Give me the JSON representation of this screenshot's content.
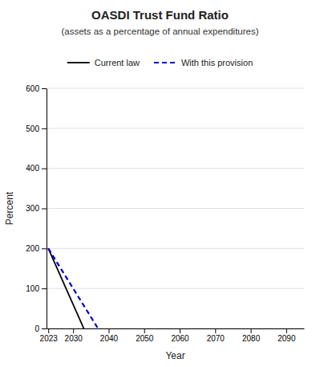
{
  "chart_data": {
    "type": "line",
    "title": "OASDI Trust Fund Ratio",
    "subtitle": "(assets as a percentage of annual expenditures)",
    "xlabel": "Year",
    "ylabel": "Percent",
    "xlim": [
      2022.5,
      2095
    ],
    "ylim": [
      0,
      600
    ],
    "xticks": [
      2023,
      2030,
      2040,
      2050,
      2060,
      2070,
      2080,
      2090
    ],
    "yticks": [
      0,
      100,
      200,
      300,
      400,
      500,
      600
    ],
    "grid": true,
    "legend": "top",
    "series": [
      {
        "name": "Current law",
        "color": "#000000",
        "line_style": "solid",
        "x": [
          2023,
          2033
        ],
        "values": [
          200,
          0
        ]
      },
      {
        "name": "With this provision",
        "color": "#0000cc",
        "line_style": "dashed",
        "x": [
          2023,
          2037
        ],
        "values": [
          200,
          0
        ]
      }
    ]
  }
}
